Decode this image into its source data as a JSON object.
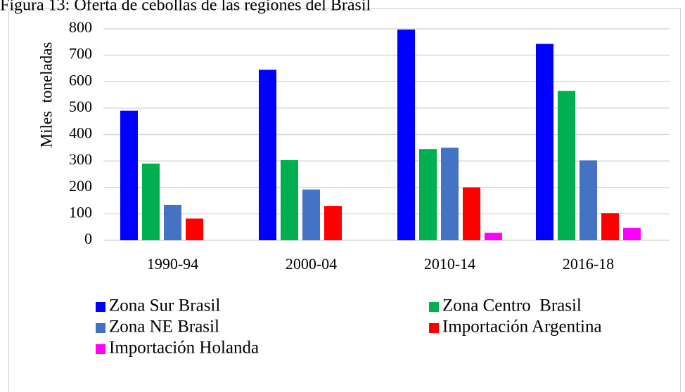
{
  "chart_data": {
    "type": "bar",
    "title": "Figura 13: Oferta de cebollas de las regiones del Brasil",
    "y_label": "Miles  toneladas",
    "categories": [
      "1990-94",
      "2000-04",
      "2010-14",
      "2016-18"
    ],
    "series": [
      {
        "name": "Zona Sur Brasil",
        "color": "#0000ff",
        "values": [
          490,
          645,
          797,
          743
        ]
      },
      {
        "name": "Zona Centro  Brasil",
        "color": "#00b050",
        "values": [
          290,
          303,
          345,
          565
        ]
      },
      {
        "name": "Zona NE Brasil",
        "color": "#4472c4",
        "values": [
          133,
          192,
          350,
          302
        ]
      },
      {
        "name": "Importación Argentina",
        "color": "#ff0000",
        "values": [
          82,
          130,
          200,
          103
        ]
      },
      {
        "name": "Importación Holanda",
        "color": "#ff00ff",
        "values": [
          null,
          null,
          28,
          47
        ]
      }
    ],
    "ylim": [
      0,
      800
    ],
    "yticks": [
      0,
      100,
      200,
      300,
      400,
      500,
      600,
      700,
      800
    ],
    "grid": true,
    "legend": "bottom"
  }
}
